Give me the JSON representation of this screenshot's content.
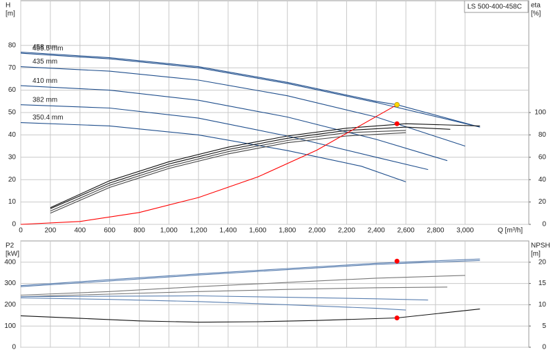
{
  "chart_data": [
    {
      "type": "line",
      "title": "LS 500-400-458C",
      "ylabel": "H",
      "yunit": "[m]",
      "y2label": "eta",
      "y2unit": "[%]",
      "xlabel": "Q [m³/h]",
      "xlim": [
        0,
        3430
      ],
      "xticks": [
        0,
        200,
        400,
        600,
        800,
        {
          "value": 1000,
          "label": "1,000"
        },
        {
          "value": 1200,
          "label": "1,200"
        },
        {
          "value": 1400,
          "label": "1,400"
        },
        {
          "value": 1600,
          "label": "1,600"
        },
        {
          "value": 1800,
          "label": "1,800"
        },
        {
          "value": 2000,
          "label": "2,000"
        },
        {
          "value": 2200,
          "label": "2,200"
        },
        {
          "value": 2400,
          "label": "2,400"
        },
        {
          "value": 2600,
          "label": "2,600"
        },
        {
          "value": 2800,
          "label": "2,800"
        },
        {
          "value": 3000,
          "label": "3,000"
        }
      ],
      "ylim": [
        0,
        100
      ],
      "yticks": [
        0,
        10,
        20,
        30,
        40,
        50,
        60,
        70,
        80
      ],
      "y2lim": [
        0,
        200
      ],
      "y2ticks": [
        0,
        20,
        40,
        60,
        80,
        100
      ],
      "grid": true,
      "series": [
        {
          "name": "458 mm",
          "color": "#1f4e8c",
          "x": [
            0,
            600,
            1200,
            1800,
            2400,
            2540,
            3100
          ],
          "values": [
            77,
            74.5,
            70.5,
            63.5,
            55,
            53.5,
            43.5
          ]
        },
        {
          "name": "455.5 mm",
          "color": "#1f4e8c",
          "x": [
            0,
            600,
            1200,
            1800,
            2400,
            3100
          ],
          "values": [
            76.5,
            74,
            70,
            63,
            54.5,
            43.5
          ]
        },
        {
          "name": "435 mm",
          "color": "#1f4e8c",
          "x": [
            0,
            600,
            1200,
            1800,
            2400,
            3000
          ],
          "values": [
            70.5,
            68.5,
            64.5,
            57.5,
            48,
            35
          ]
        },
        {
          "name": "410 mm",
          "color": "#1f4e8c",
          "x": [
            0,
            600,
            1200,
            1800,
            2400,
            2880
          ],
          "values": [
            62,
            60,
            55.5,
            48,
            38,
            28.5
          ]
        },
        {
          "name": "382 mm",
          "color": "#1f4e8c",
          "x": [
            0,
            600,
            1200,
            1800,
            2400,
            2750
          ],
          "values": [
            53.5,
            52,
            47.5,
            39.5,
            30,
            24.5
          ]
        },
        {
          "name": "350.4 mm",
          "color": "#1f4e8c",
          "x": [
            0,
            600,
            1200,
            1800,
            2300,
            2600
          ],
          "values": [
            45.5,
            44,
            40,
            33,
            26,
            19
          ]
        },
        {
          "color": "#111111",
          "axis": "y2",
          "x": [
            200,
            600,
            1000,
            1400,
            1800,
            2200,
            2600,
            3100
          ],
          "values": [
            15,
            39,
            56,
            69,
            79,
            86,
            90,
            88
          ]
        },
        {
          "color": "#111111",
          "axis": "y2",
          "x": [
            200,
            600,
            1000,
            1400,
            1800,
            2200,
            2600,
            2900
          ],
          "values": [
            14,
            37,
            54,
            67,
            77,
            84,
            87,
            85
          ]
        },
        {
          "color": "#444444",
          "axis": "y2",
          "x": [
            200,
            600,
            1000,
            1400,
            1800,
            2200,
            2600
          ],
          "values": [
            12,
            35,
            52,
            65,
            75,
            82,
            84
          ]
        },
        {
          "color": "#444444",
          "axis": "y2",
          "x": [
            200,
            600,
            1000,
            1400,
            1800,
            2200,
            2600
          ],
          "values": [
            10,
            33,
            50,
            63,
            73,
            79,
            82
          ]
        },
        {
          "color": "#ff0000",
          "x": [
            0,
            400,
            800,
            1200,
            1600,
            2000,
            2540
          ],
          "values": [
            0,
            1.3,
            5.3,
            12,
            21.2,
            33.2,
            53.5
          ]
        },
        {
          "color": "#ffd700",
          "marker": "circle",
          "x": [
            2540
          ],
          "values": [
            53.5
          ]
        },
        {
          "color": "#ff0000",
          "marker": "circle",
          "axis": "y2",
          "x": [
            2540
          ],
          "values": [
            90
          ]
        }
      ]
    },
    {
      "type": "line",
      "ylabel": "P2",
      "yunit": "[kW]",
      "y2label": "NPSH",
      "y2unit": "[m]",
      "xlim": [
        0,
        3430
      ],
      "xticks": [
        0,
        200,
        400,
        600,
        800,
        1000,
        1200,
        1400,
        1600,
        1800,
        2000,
        2200,
        2400,
        2600,
        2800,
        3000
      ],
      "ylim": [
        0,
        500
      ],
      "yticks": [
        0,
        100,
        200,
        300,
        400
      ],
      "y2lim": [
        0,
        25
      ],
      "y2ticks": [
        0,
        5,
        10,
        15,
        20
      ],
      "grid": true,
      "series": [
        {
          "color": "#5a7fb0",
          "x": [
            0,
            600,
            1200,
            1800,
            2400,
            3100
          ],
          "values": [
            290,
            318,
            345,
            370,
            395,
            415
          ]
        },
        {
          "color": "#5a7fb0",
          "x": [
            0,
            600,
            1200,
            1800,
            2400,
            3100
          ],
          "values": [
            285,
            312,
            340,
            365,
            390,
            408
          ]
        },
        {
          "color": "#777777",
          "x": [
            0,
            600,
            1200,
            1800,
            2400,
            3000
          ],
          "values": [
            245,
            262,
            285,
            305,
            325,
            338
          ]
        },
        {
          "color": "#777777",
          "x": [
            0,
            600,
            1200,
            1800,
            2400,
            2880
          ],
          "values": [
            238,
            250,
            262,
            272,
            280,
            283
          ]
        },
        {
          "color": "#5a7fb0",
          "x": [
            0,
            600,
            1200,
            1800,
            2400,
            2750
          ],
          "values": [
            238,
            240,
            242,
            235,
            228,
            222
          ]
        },
        {
          "color": "#5a7fb0",
          "x": [
            0,
            600,
            1200,
            1800,
            2400,
            2600
          ],
          "values": [
            232,
            225,
            215,
            200,
            183,
            175
          ]
        },
        {
          "color": "#111111",
          "axis": "y2",
          "x": [
            0,
            400,
            800,
            1200,
            1600,
            2000,
            2540,
            3100
          ],
          "values": [
            7.4,
            6.8,
            6.2,
            5.9,
            6.0,
            6.3,
            6.9,
            9.0
          ]
        },
        {
          "color": "#ff0000",
          "marker": "circle",
          "x": [
            2540
          ],
          "values": [
            405
          ]
        },
        {
          "color": "#ff0000",
          "marker": "circle",
          "axis": "y2",
          "x": [
            2540
          ],
          "values": [
            6.9
          ]
        }
      ]
    }
  ]
}
